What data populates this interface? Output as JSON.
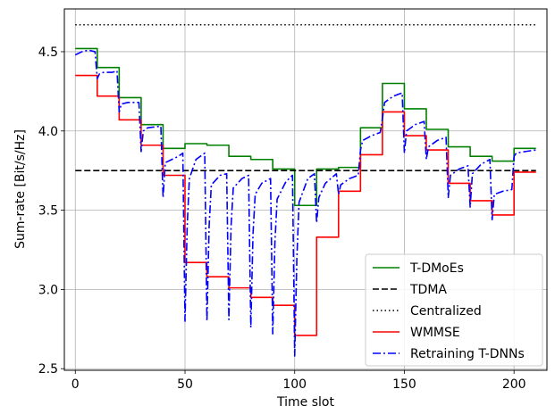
{
  "chart_data": {
    "type": "line",
    "xlabel": "Time slot",
    "ylabel": "Sum-rate [Bit/s/Hz]",
    "xlim": [
      -5,
      215
    ],
    "ylim": [
      2.49,
      4.77
    ],
    "xticks": [
      0,
      50,
      100,
      150,
      200
    ],
    "yticks": [
      2.5,
      3.0,
      3.5,
      4.0,
      4.5
    ],
    "xtick_labels": [
      "0",
      "50",
      "100",
      "150",
      "200"
    ],
    "ytick_labels": [
      "2.5",
      "3.0",
      "3.5",
      "4.0",
      "4.5"
    ],
    "grid": true,
    "legend_position": "bottom-right",
    "series": [
      {
        "name": "T-DMoEs",
        "color": "#008000",
        "style": "solid",
        "points": [
          [
            0,
            4.52
          ],
          [
            10,
            4.52
          ],
          [
            10,
            4.4
          ],
          [
            20,
            4.4
          ],
          [
            20,
            4.21
          ],
          [
            30,
            4.21
          ],
          [
            30,
            4.04
          ],
          [
            40,
            4.04
          ],
          [
            40,
            3.89
          ],
          [
            50,
            3.89
          ],
          [
            50,
            3.92
          ],
          [
            60,
            3.92
          ],
          [
            60,
            3.91
          ],
          [
            70,
            3.91
          ],
          [
            70,
            3.84
          ],
          [
            80,
            3.84
          ],
          [
            80,
            3.82
          ],
          [
            90,
            3.82
          ],
          [
            90,
            3.76
          ],
          [
            100,
            3.76
          ],
          [
            100,
            3.53
          ],
          [
            110,
            3.53
          ],
          [
            110,
            3.76
          ],
          [
            120,
            3.76
          ],
          [
            120,
            3.77
          ],
          [
            130,
            3.77
          ],
          [
            130,
            4.02
          ],
          [
            140,
            4.02
          ],
          [
            140,
            4.3
          ],
          [
            150,
            4.3
          ],
          [
            150,
            4.14
          ],
          [
            160,
            4.14
          ],
          [
            160,
            4.01
          ],
          [
            170,
            4.01
          ],
          [
            170,
            3.9
          ],
          [
            180,
            3.9
          ],
          [
            180,
            3.84
          ],
          [
            190,
            3.84
          ],
          [
            190,
            3.81
          ],
          [
            200,
            3.81
          ],
          [
            200,
            3.89
          ],
          [
            210,
            3.89
          ]
        ]
      },
      {
        "name": "TDMA",
        "color": "#000000",
        "style": "dashed",
        "points": [
          [
            0,
            3.75
          ],
          [
            210,
            3.75
          ]
        ]
      },
      {
        "name": "Centralized",
        "color": "#000000",
        "style": "dotted",
        "points": [
          [
            0,
            4.67
          ],
          [
            210,
            4.67
          ]
        ]
      },
      {
        "name": "WMMSE",
        "color": "#ff0000",
        "style": "solid",
        "points": [
          [
            0,
            4.35
          ],
          [
            10,
            4.35
          ],
          [
            10,
            4.22
          ],
          [
            20,
            4.22
          ],
          [
            20,
            4.07
          ],
          [
            30,
            4.07
          ],
          [
            30,
            3.91
          ],
          [
            40,
            3.91
          ],
          [
            40,
            3.72
          ],
          [
            50,
            3.72
          ],
          [
            50,
            3.17
          ],
          [
            60,
            3.17
          ],
          [
            60,
            3.08
          ],
          [
            70,
            3.08
          ],
          [
            70,
            3.01
          ],
          [
            80,
            3.01
          ],
          [
            80,
            2.95
          ],
          [
            90,
            2.95
          ],
          [
            90,
            2.9
          ],
          [
            100,
            2.9
          ],
          [
            100,
            2.71
          ],
          [
            110,
            2.71
          ],
          [
            110,
            3.33
          ],
          [
            120,
            3.33
          ],
          [
            120,
            3.62
          ],
          [
            130,
            3.62
          ],
          [
            130,
            3.85
          ],
          [
            140,
            3.85
          ],
          [
            140,
            4.12
          ],
          [
            150,
            4.12
          ],
          [
            150,
            3.97
          ],
          [
            160,
            3.97
          ],
          [
            160,
            3.88
          ],
          [
            170,
            3.88
          ],
          [
            170,
            3.67
          ],
          [
            180,
            3.67
          ],
          [
            180,
            3.56
          ],
          [
            190,
            3.56
          ],
          [
            190,
            3.47
          ],
          [
            200,
            3.47
          ],
          [
            200,
            3.74
          ],
          [
            210,
            3.74
          ]
        ]
      },
      {
        "name": "Retraining T-DNNs",
        "color": "#0000ff",
        "style": "dashdot",
        "points": [
          [
            0,
            4.48
          ],
          [
            3,
            4.5
          ],
          [
            6,
            4.51
          ],
          [
            9,
            4.5
          ],
          [
            10,
            4.33
          ],
          [
            11,
            4.36
          ],
          [
            13,
            4.37
          ],
          [
            17,
            4.37
          ],
          [
            19,
            4.38
          ],
          [
            20,
            4.12
          ],
          [
            21,
            4.17
          ],
          [
            24,
            4.18
          ],
          [
            29,
            4.18
          ],
          [
            30,
            3.87
          ],
          [
            31,
            4.0
          ],
          [
            33,
            4.02
          ],
          [
            39,
            4.03
          ],
          [
            40,
            3.58
          ],
          [
            41,
            3.8
          ],
          [
            44,
            3.82
          ],
          [
            47,
            3.84
          ],
          [
            49,
            3.86
          ],
          [
            50,
            2.8
          ],
          [
            51,
            3.4
          ],
          [
            52,
            3.7
          ],
          [
            55,
            3.82
          ],
          [
            59,
            3.86
          ],
          [
            60,
            2.8
          ],
          [
            61,
            3.4
          ],
          [
            62,
            3.66
          ],
          [
            66,
            3.72
          ],
          [
            69,
            3.73
          ],
          [
            70,
            2.81
          ],
          [
            71,
            3.4
          ],
          [
            72,
            3.64
          ],
          [
            76,
            3.7
          ],
          [
            79,
            3.72
          ],
          [
            80,
            2.76
          ],
          [
            81,
            3.35
          ],
          [
            82,
            3.6
          ],
          [
            85,
            3.67
          ],
          [
            89,
            3.7
          ],
          [
            90,
            2.72
          ],
          [
            91,
            3.3
          ],
          [
            92,
            3.57
          ],
          [
            96,
            3.68
          ],
          [
            99,
            3.72
          ],
          [
            100,
            2.58
          ],
          [
            101,
            3.2
          ],
          [
            102,
            3.55
          ],
          [
            106,
            3.7
          ],
          [
            109,
            3.73
          ],
          [
            110,
            3.42
          ],
          [
            111,
            3.58
          ],
          [
            114,
            3.67
          ],
          [
            119,
            3.73
          ],
          [
            120,
            3.6
          ],
          [
            121,
            3.66
          ],
          [
            125,
            3.7
          ],
          [
            129,
            3.72
          ],
          [
            130,
            3.88
          ],
          [
            131,
            3.94
          ],
          [
            135,
            3.97
          ],
          [
            139,
            3.99
          ],
          [
            140,
            4.08
          ],
          [
            141,
            4.18
          ],
          [
            145,
            4.22
          ],
          [
            149,
            4.24
          ],
          [
            150,
            3.86
          ],
          [
            151,
            4.0
          ],
          [
            155,
            4.04
          ],
          [
            159,
            4.06
          ],
          [
            160,
            3.82
          ],
          [
            161,
            3.9
          ],
          [
            165,
            3.94
          ],
          [
            169,
            3.96
          ],
          [
            170,
            3.58
          ],
          [
            171,
            3.72
          ],
          [
            175,
            3.76
          ],
          [
            179,
            3.78
          ],
          [
            180,
            3.52
          ],
          [
            181,
            3.73
          ],
          [
            185,
            3.79
          ],
          [
            189,
            3.82
          ],
          [
            190,
            3.44
          ],
          [
            191,
            3.6
          ],
          [
            195,
            3.62
          ],
          [
            199,
            3.63
          ],
          [
            200,
            3.84
          ],
          [
            201,
            3.86
          ],
          [
            205,
            3.87
          ],
          [
            210,
            3.88
          ]
        ]
      }
    ]
  }
}
